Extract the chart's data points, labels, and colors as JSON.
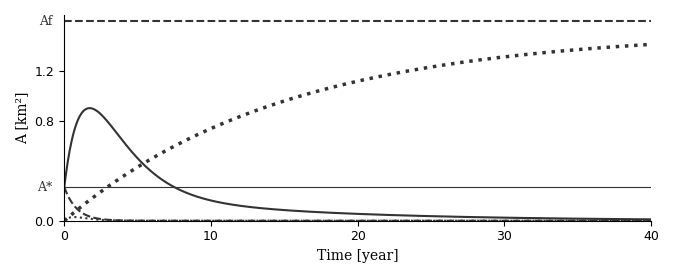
{
  "t_max": 40,
  "Af": 1.6,
  "A_star": 0.27,
  "ylim": [
    0,
    1.65
  ],
  "xlim": [
    0,
    40
  ],
  "yticks": [
    0,
    0.8,
    1.2
  ],
  "xticks": [
    0,
    10,
    20,
    30,
    40
  ],
  "xlabel": "Time [year]",
  "ylabel": "A [km²]",
  "label_Af": "Af",
  "label_Astar": "A*",
  "background_color": "#ffffff",
  "line_color": "#333333",
  "solid_a": 1.0,
  "solid_b": 0.55,
  "solid_c": 0.27,
  "solid_d": 0.08,
  "dotted_Af": 1.6,
  "dotted_k": 15.0,
  "dotted_scale": 0.95,
  "dash_scale": 0.27,
  "dash_k": 1.2,
  "small_scale": 0.12,
  "small_k": 1.5
}
